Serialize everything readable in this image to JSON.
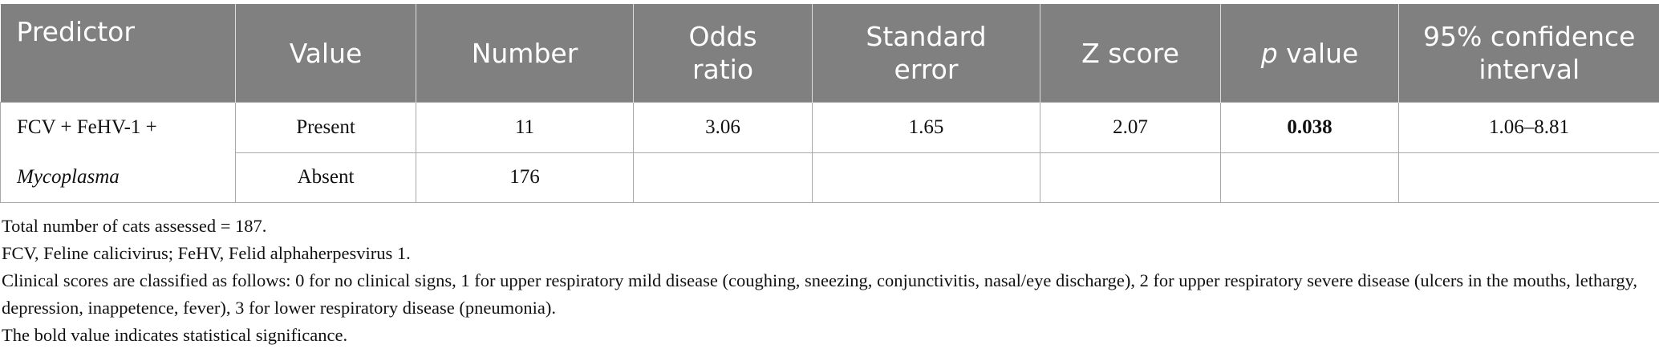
{
  "table": {
    "header": [
      [
        "Predictor"
      ],
      [
        "Value"
      ],
      [
        "Number"
      ],
      [
        "Odds",
        "ratio"
      ],
      [
        "Standard",
        "error"
      ],
      [
        "Z score"
      ],
      {
        "italic": "p",
        "text": "value"
      },
      [
        "95% confidence",
        "interval"
      ]
    ],
    "predictor": {
      "text": "FCV + FeHV-1 +",
      "italic": "Mycoplasma"
    },
    "rows": [
      [
        "Present",
        "11",
        "3.06",
        "1.65",
        "2.07",
        "0.038",
        "1.06–8.81"
      ],
      [
        "Absent",
        "176"
      ]
    ]
  },
  "notes": [
    "Total number of cats assessed = 187.",
    "FCV, Feline calicivirus; FeHV, Felid alphaherpesvirus 1.",
    "Clinical scores are classified as follows: 0 for no clinical signs, 1 for upper respiratory mild disease (coughing, sneezing, conjunctivitis, nasal/eye discharge), 2 for upper respiratory severe disease (ulcers in the mouths, lethargy, depression, inappetence, fever), 3 for lower respiratory disease (pneumonia).",
    "The bold value indicates statistical significance."
  ]
}
